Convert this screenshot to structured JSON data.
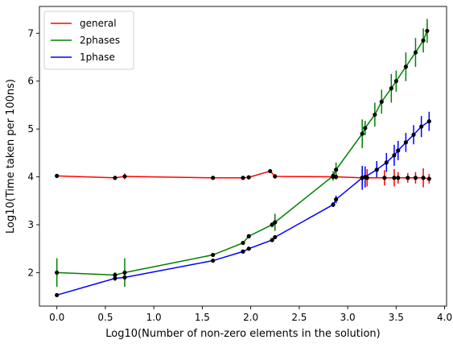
{
  "chart_data": {
    "type": "line",
    "xlabel": "Log10(Number of non-zero elements in the solution)",
    "ylabel": "Log10(Time taken per 100ns)",
    "xlim": [
      -0.18,
      4.02
    ],
    "ylim": [
      1.3,
      7.56
    ],
    "xticks": [
      0.0,
      0.5,
      1.0,
      1.5,
      2.0,
      2.5,
      3.0,
      3.5,
      4.0
    ],
    "yticks": [
      2,
      3,
      4,
      5,
      6,
      7
    ],
    "xtick_labels": [
      "0.0",
      "0.5",
      "1.0",
      "1.5",
      "2.0",
      "2.5",
      "3.0",
      "3.5",
      "4.0"
    ],
    "ytick_labels": [
      "2",
      "3",
      "4",
      "5",
      "6",
      "7"
    ],
    "grid": false,
    "legend_position": "upper-left",
    "series": [
      {
        "name": "general",
        "color": "#ff0000",
        "x": [
          0.0,
          0.6,
          0.7,
          1.61,
          1.92,
          1.98,
          2.2,
          2.25,
          2.85,
          2.88,
          3.15,
          3.2,
          3.38,
          3.48,
          3.52,
          3.62,
          3.7,
          3.78,
          3.84
        ],
        "y": [
          4.02,
          3.98,
          4.01,
          3.98,
          3.98,
          3.99,
          4.12,
          4.01,
          4.0,
          4.0,
          3.98,
          3.98,
          3.98,
          3.98,
          3.98,
          3.98,
          3.98,
          3.98,
          3.96
        ],
        "yerr": [
          0.04,
          0.03,
          0.06,
          0.02,
          0.02,
          0.03,
          0.03,
          0.05,
          0.04,
          0.06,
          0.18,
          0.18,
          0.16,
          0.18,
          0.12,
          0.1,
          0.12,
          0.2,
          0.1
        ]
      },
      {
        "name": "2phases",
        "color": "#008000",
        "x": [
          0.0,
          0.6,
          0.7,
          1.61,
          1.92,
          1.98,
          2.22,
          2.25,
          2.85,
          2.88,
          3.15,
          3.18,
          3.28,
          3.35,
          3.45,
          3.5,
          3.6,
          3.7,
          3.78,
          3.82
        ],
        "y": [
          2.0,
          1.95,
          2.0,
          2.37,
          2.62,
          2.76,
          3.0,
          3.05,
          4.02,
          4.15,
          4.9,
          5.02,
          5.3,
          5.57,
          5.85,
          6.0,
          6.3,
          6.6,
          6.85,
          7.05
        ],
        "yerr": [
          0.3,
          0.06,
          0.3,
          0.04,
          0.04,
          0.04,
          0.05,
          0.18,
          0.1,
          0.15,
          0.3,
          0.15,
          0.25,
          0.25,
          0.3,
          0.22,
          0.3,
          0.3,
          0.25,
          0.25
        ]
      },
      {
        "name": "1phase",
        "color": "#0000ff",
        "x": [
          0.0,
          0.6,
          0.7,
          1.61,
          1.92,
          1.98,
          2.22,
          2.25,
          2.85,
          2.88,
          3.15,
          3.18,
          3.3,
          3.4,
          3.48,
          3.52,
          3.6,
          3.68,
          3.76,
          3.84
        ],
        "y": [
          1.53,
          1.88,
          1.9,
          2.25,
          2.44,
          2.5,
          2.68,
          2.74,
          3.42,
          3.53,
          3.98,
          4.0,
          4.15,
          4.3,
          4.45,
          4.55,
          4.72,
          4.88,
          5.05,
          5.16
        ],
        "yerr": [
          0.02,
          0.05,
          0.05,
          0.03,
          0.03,
          0.03,
          0.03,
          0.03,
          0.05,
          0.08,
          0.25,
          0.22,
          0.18,
          0.2,
          0.22,
          0.2,
          0.2,
          0.2,
          0.22,
          0.2
        ]
      }
    ]
  }
}
